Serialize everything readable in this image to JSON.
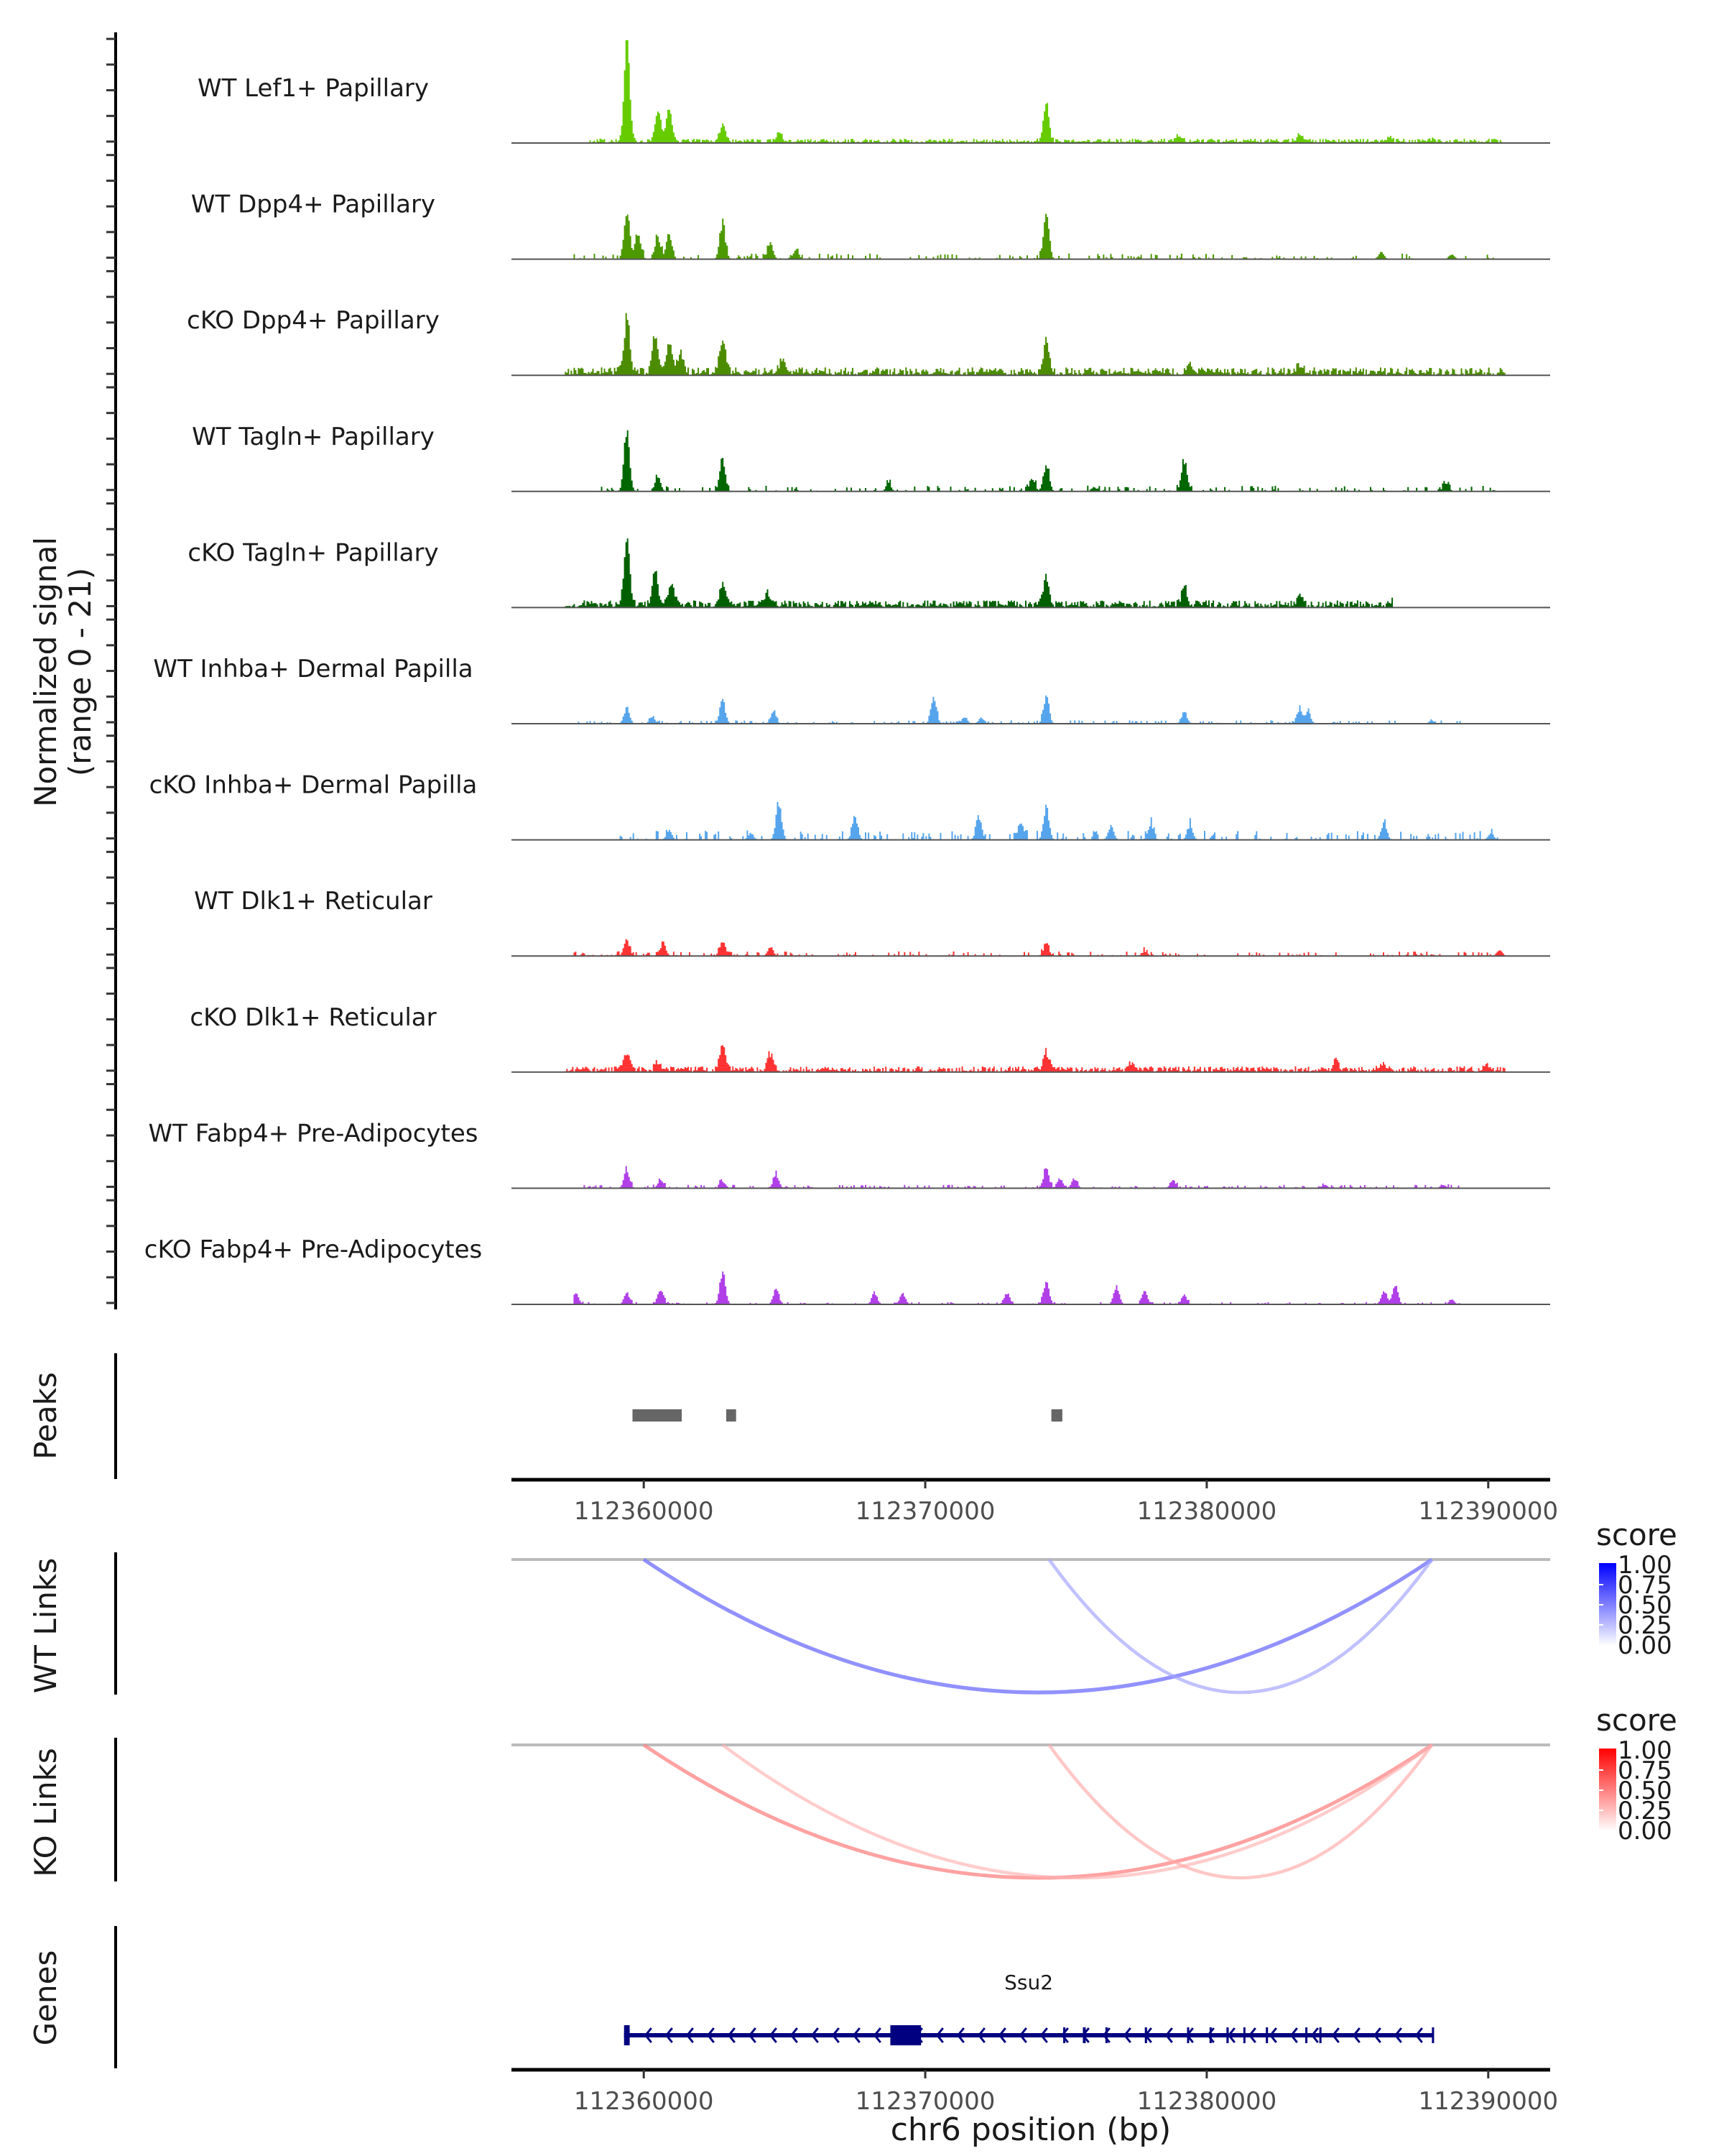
{
  "chart_data": {
    "type": "area",
    "title": "",
    "chromosome": "chr6",
    "xlabel": "chr6 position (bp)",
    "xlim": [
      112355300,
      112392200
    ],
    "x_ticks": [
      112360000,
      112370000,
      112380000,
      112390000
    ],
    "x_tick_labels": [
      "112360000",
      "112370000",
      "112380000",
      "112390000"
    ],
    "coverage": {
      "ylabel_line1": "Normalized signal",
      "ylabel_line2": "(range 0 - 21)",
      "ylim": [
        0,
        21
      ],
      "tracks": [
        {
          "name": "WT Lef1+ Papillary",
          "color": "#66CC00",
          "peaks": [
            [
              112359400,
              21
            ],
            [
              112360500,
              7
            ],
            [
              112360900,
              7.5
            ],
            [
              112362800,
              3.5
            ],
            [
              112364800,
              2
            ],
            [
              112374300,
              8
            ],
            [
              112379000,
              1.5
            ],
            [
              112383300,
              1.2
            ],
            [
              112386500,
              0.8
            ],
            [
              112388000,
              0.6
            ]
          ],
          "noise": 0.6,
          "noise_range": [
            112358000,
            112390500
          ]
        },
        {
          "name": "WT Dpp4+ Papillary",
          "color": "#4C9900",
          "peaks": [
            [
              112359400,
              11
            ],
            [
              112359800,
              6
            ],
            [
              112360500,
              4.5
            ],
            [
              112360900,
              5.5
            ],
            [
              112362800,
              8
            ],
            [
              112364500,
              3.5
            ],
            [
              112365400,
              2
            ],
            [
              112374300,
              9
            ],
            [
              112386200,
              1.5
            ],
            [
              112388700,
              1
            ]
          ],
          "noise": 0.5,
          "noise_range": [
            112357500,
            112390300
          ],
          "sparse": true
        },
        {
          "name": "cKO Dpp4+ Papillary",
          "color": "#4C8C00",
          "peaks": [
            [
              112359400,
              12
            ],
            [
              112360400,
              8
            ],
            [
              112360900,
              7
            ],
            [
              112361300,
              4
            ],
            [
              112362800,
              7.5
            ],
            [
              112364900,
              2.5
            ],
            [
              112374300,
              6.5
            ],
            [
              112379400,
              2
            ],
            [
              112383300,
              1.5
            ]
          ],
          "noise": 1.1,
          "noise_range": [
            112357200,
            112390600
          ]
        },
        {
          "name": "WT Tagln+ Papillary",
          "color": "#006600",
          "peaks": [
            [
              112359400,
              13
            ],
            [
              112360500,
              3
            ],
            [
              112362800,
              7
            ],
            [
              112373800,
              3
            ],
            [
              112374300,
              6
            ],
            [
              112379200,
              7
            ],
            [
              112368700,
              1.5
            ],
            [
              112388500,
              2
            ],
            [
              112376000,
              1
            ]
          ],
          "noise": 0.5,
          "noise_range": [
            112357800,
            112390300
          ],
          "sparse": true
        },
        {
          "name": "cKO Tagln+ Papillary",
          "color": "#006000",
          "peaks": [
            [
              112359400,
              15
            ],
            [
              112360400,
              7
            ],
            [
              112361000,
              5
            ],
            [
              112362800,
              5.5
            ],
            [
              112364400,
              2.5
            ],
            [
              112374300,
              6
            ],
            [
              112379200,
              4
            ],
            [
              112383300,
              1.5
            ],
            [
              112386500,
              0.8
            ]
          ],
          "noise": 1.0,
          "noise_range": [
            112357200,
            112386600
          ]
        },
        {
          "name": "WT Inhba+ Dermal Papilla",
          "color": "#56A5EC",
          "peaks": [
            [
              112359400,
              3.5
            ],
            [
              112360300,
              1.5
            ],
            [
              112362800,
              5
            ],
            [
              112364600,
              2.5
            ],
            [
              112370300,
              5.5
            ],
            [
              112371400,
              1.5
            ],
            [
              112372000,
              1.3
            ],
            [
              112374300,
              6
            ],
            [
              112379200,
              2.5
            ],
            [
              112383300,
              3
            ],
            [
              112383600,
              2.5
            ],
            [
              112388000,
              0.7
            ]
          ],
          "noise": 0.3,
          "noise_range": [
            112357500,
            112389000
          ],
          "sparse": true
        },
        {
          "name": "cKO Inhba+ Dermal Papilla",
          "color": "#56A5EC",
          "peaks": [
            [
              112360900,
              2
            ],
            [
              112363800,
              1.5
            ],
            [
              112364800,
              8
            ],
            [
              112367500,
              5
            ],
            [
              112371900,
              5
            ],
            [
              112373400,
              4
            ],
            [
              112374300,
              7
            ],
            [
              112376600,
              3
            ],
            [
              112378000,
              3.2
            ],
            [
              112379400,
              3
            ],
            [
              112386300,
              3.8
            ],
            [
              112390100,
              1.5
            ]
          ],
          "noise": 0.8,
          "noise_range": [
            112358800,
            112390400
          ],
          "sparse": true
        },
        {
          "name": "WT Dlk1+ Reticular",
          "color": "#FF3333",
          "peaks": [
            [
              112359400,
              3.5
            ],
            [
              112360700,
              2.5
            ],
            [
              112362800,
              3.5
            ],
            [
              112364500,
              2
            ],
            [
              112374300,
              2.5
            ],
            [
              112377800,
              1
            ],
            [
              112390400,
              1.2
            ]
          ],
          "noise": 0.4,
          "noise_range": [
            112357500,
            112390600
          ],
          "sparse": true
        },
        {
          "name": "cKO Dlk1+ Reticular",
          "color": "#FF3333",
          "peaks": [
            [
              112359400,
              4
            ],
            [
              112360500,
              1.5
            ],
            [
              112362800,
              5.5
            ],
            [
              112364500,
              3.5
            ],
            [
              112374300,
              4
            ],
            [
              112377300,
              1.5
            ],
            [
              112384600,
              2
            ],
            [
              112386200,
              1.3
            ],
            [
              112390000,
              1
            ]
          ],
          "noise": 0.8,
          "noise_range": [
            112357200,
            112390600
          ]
        },
        {
          "name": "WT Fabp4+ Pre-Adipocytes",
          "color": "#B03FE8",
          "peaks": [
            [
              112359400,
              4
            ],
            [
              112360600,
              1.8
            ],
            [
              112362800,
              1.6
            ],
            [
              112364700,
              3
            ],
            [
              112374300,
              4.2
            ],
            [
              112374800,
              2
            ],
            [
              112375300,
              2
            ],
            [
              112378800,
              1.8
            ],
            [
              112384200,
              0.8
            ],
            [
              112388400,
              0.8
            ]
          ],
          "noise": 0.3,
          "noise_range": [
            112357800,
            112389000
          ],
          "sparse": true
        },
        {
          "name": "cKO Fabp4+ Pre-Adipocytes",
          "color": "#B03FE8",
          "peaks": [
            [
              112357600,
              2.5
            ],
            [
              112359400,
              2.5
            ],
            [
              112360600,
              3.5
            ],
            [
              112362800,
              7
            ],
            [
              112364700,
              3.5
            ],
            [
              112368200,
              2.5
            ],
            [
              112369200,
              2.5
            ],
            [
              112372900,
              2.5
            ],
            [
              112374300,
              4.5
            ],
            [
              112376800,
              4
            ],
            [
              112377800,
              3
            ],
            [
              112379200,
              2
            ],
            [
              112386300,
              3
            ],
            [
              112386700,
              3.8
            ],
            [
              112388700,
              1
            ]
          ],
          "noise": 0.2,
          "noise_range": [
            112357500,
            112389000
          ],
          "sparse": true
        }
      ]
    },
    "peaks_track": {
      "label": "Peaks",
      "color": "#666666",
      "regions": [
        [
          112359600,
          112361350
        ],
        [
          112362930,
          112363280
        ],
        [
          112374480,
          112374870
        ]
      ]
    },
    "links_tracks": [
      {
        "label": "WT Links",
        "legend_title": "score",
        "color_low": "#FFFFFF",
        "color_high": "#0000FF",
        "legend_ticks": [
          "1.00",
          "0.75",
          "0.50",
          "0.25",
          "0.00"
        ],
        "links": [
          {
            "start": 112360000,
            "end": 112388000,
            "score": 0.6
          },
          {
            "start": 112374400,
            "end": 112388000,
            "score": 0.3
          }
        ]
      },
      {
        "label": "KO Links",
        "legend_title": "score",
        "color_low": "#FFFFFF",
        "color_high": "#FF0000",
        "legend_ticks": [
          "1.00",
          "0.75",
          "0.50",
          "0.25",
          "0.00"
        ],
        "links": [
          {
            "start": 112360000,
            "end": 112388000,
            "score": 0.5
          },
          {
            "start": 112362800,
            "end": 112388000,
            "score": 0.22
          },
          {
            "start": 112374400,
            "end": 112388000,
            "score": 0.25
          }
        ]
      }
    ],
    "genes_track": {
      "label": "Genes",
      "color": "#000080",
      "genes": [
        {
          "name": "Ssu2",
          "start": 112359300,
          "end": 112388050,
          "strand": "-",
          "exons": [
            [
              112359300,
              112359500
            ],
            [
              112368760,
              112369850
            ],
            [
              112374900,
              112374960
            ],
            [
              112375600,
              112375700
            ],
            [
              112376400,
              112376480
            ],
            [
              112377800,
              112377880
            ],
            [
              112379300,
              112379350
            ],
            [
              112380100,
              112380150
            ],
            [
              112380700,
              112380780
            ],
            [
              112381300,
              112381350
            ],
            [
              112382100,
              112382160
            ],
            [
              112383500,
              112383560
            ],
            [
              112384000,
              112384060
            ],
            [
              112388000,
              112388050
            ]
          ]
        }
      ]
    }
  }
}
